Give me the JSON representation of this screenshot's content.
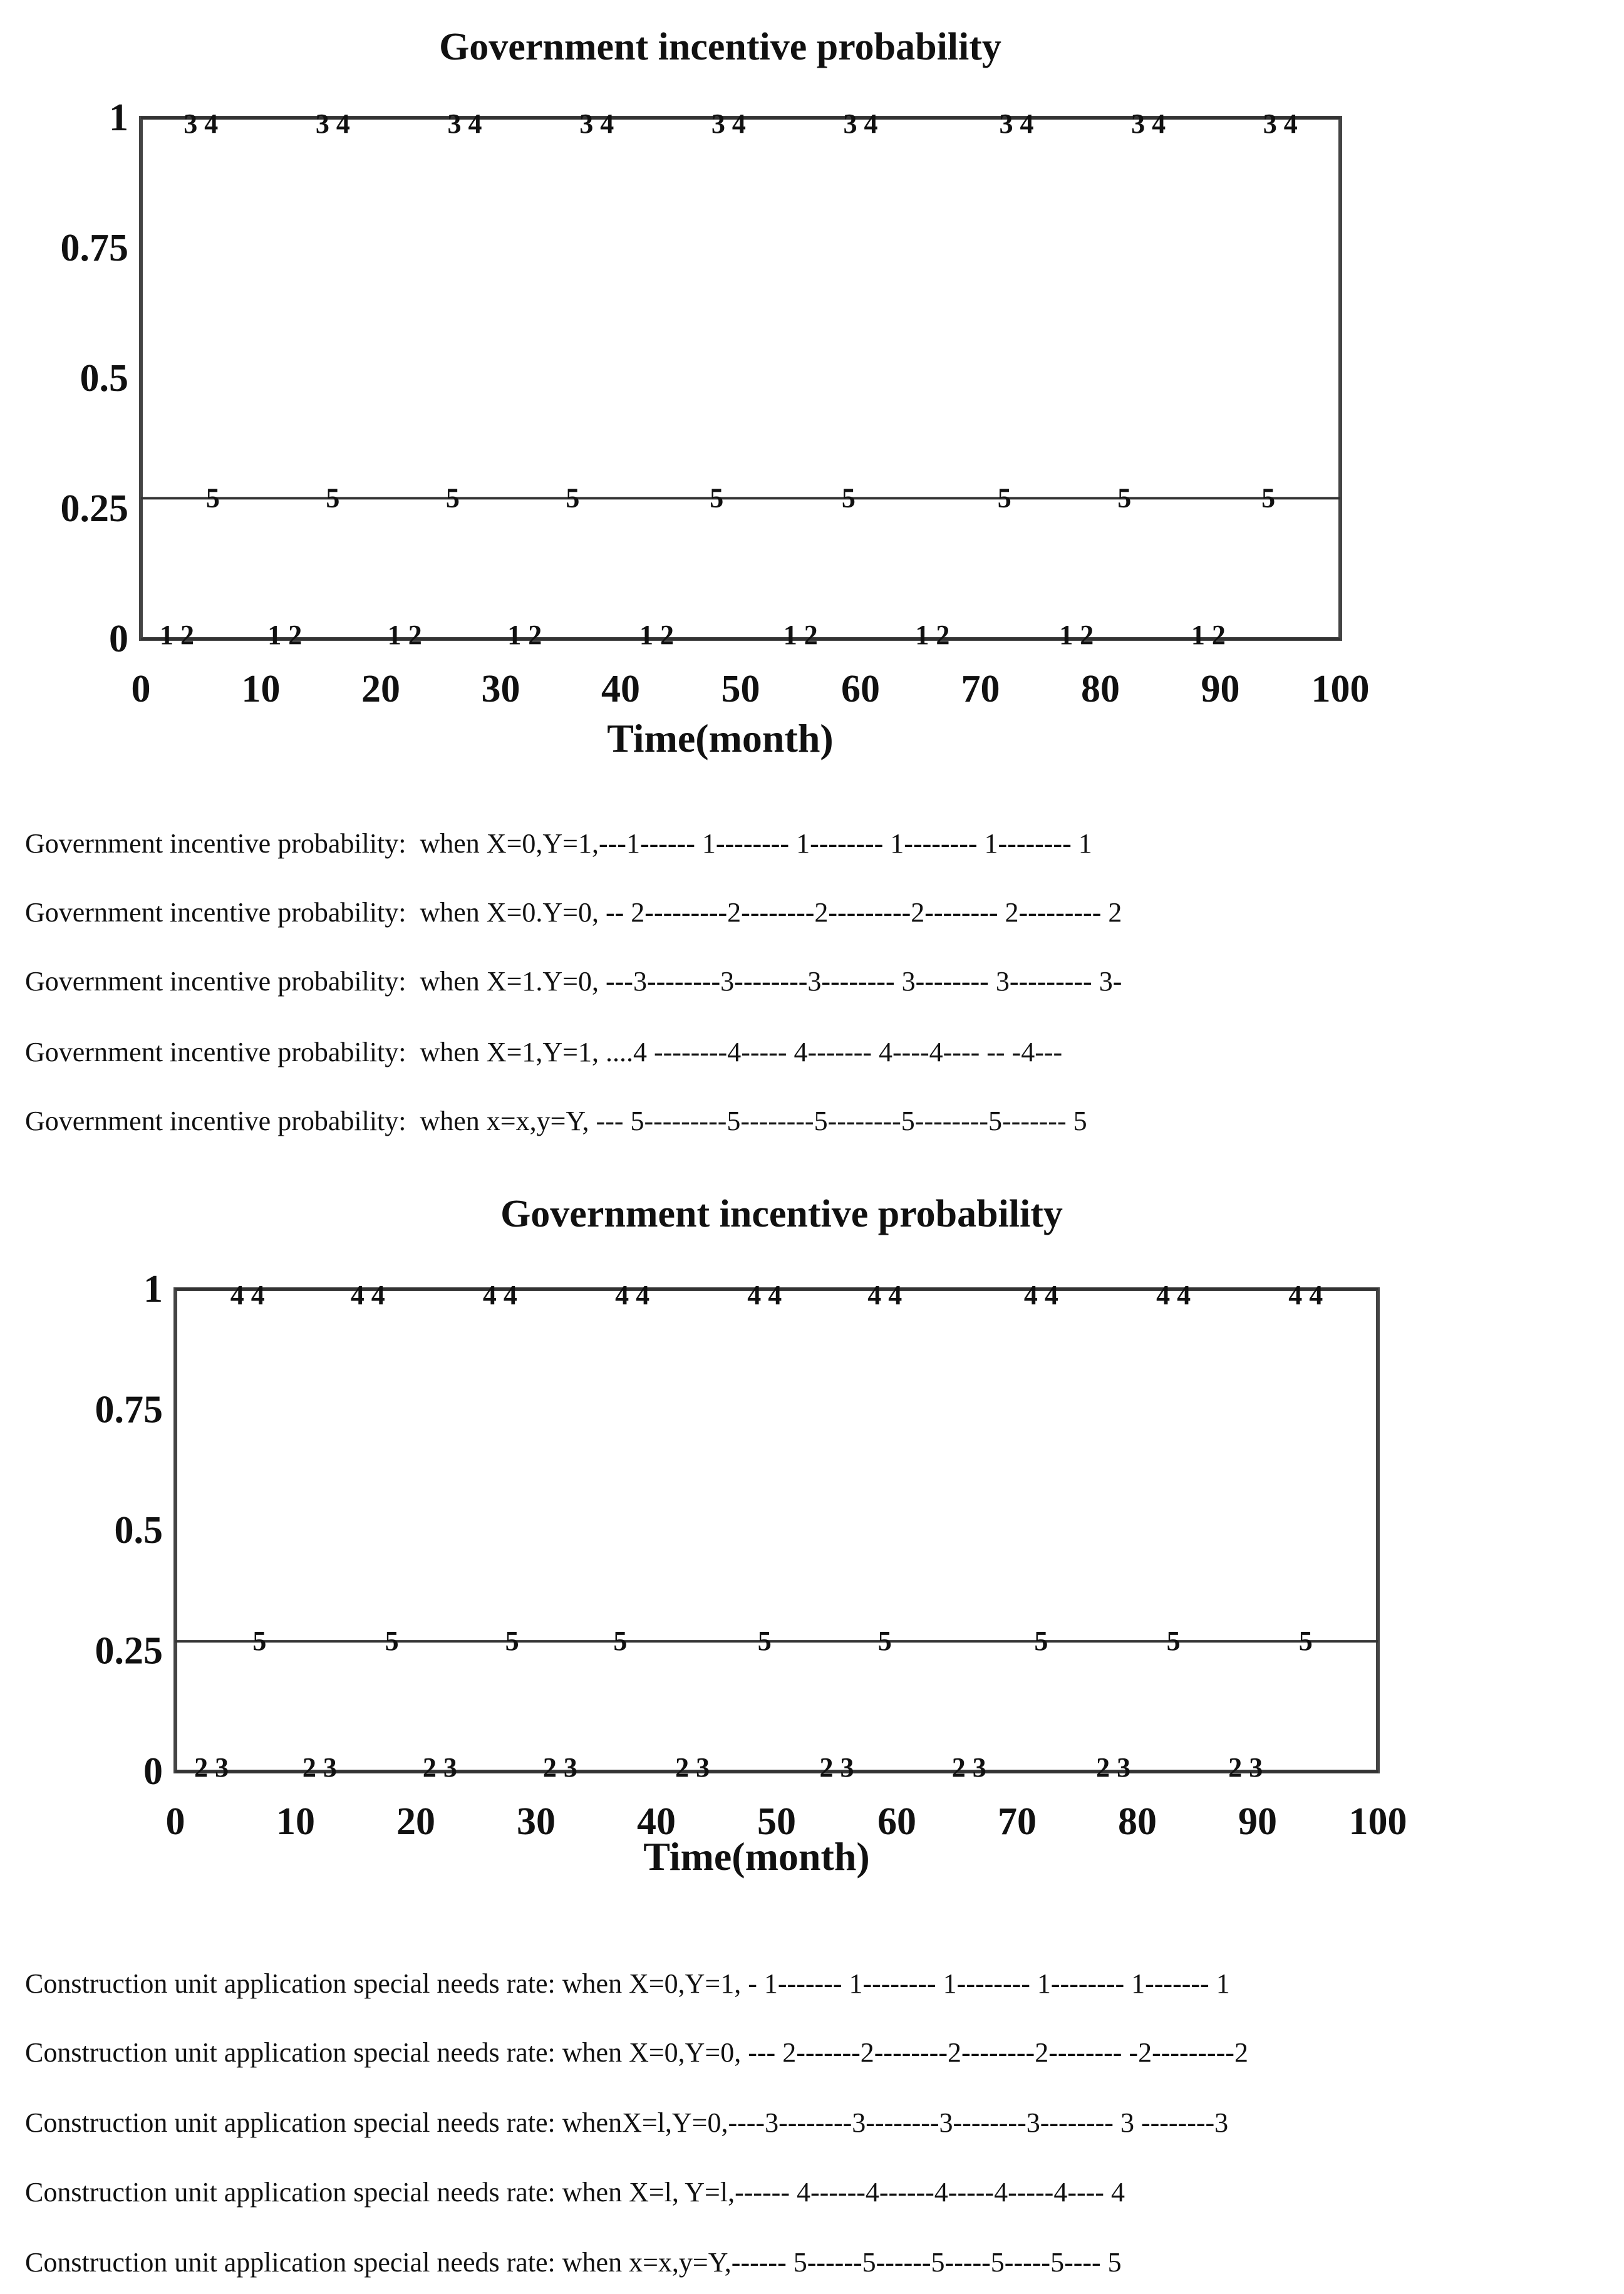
{
  "chart_data": [
    {
      "type": "line",
      "title": "Government incentive probability",
      "xlabel": "Time(month)",
      "ylabel": "",
      "xlim": [
        0,
        100
      ],
      "ylim": [
        0,
        1
      ],
      "x_ticks": [
        "0",
        "10",
        "20",
        "30",
        "40",
        "50",
        "60",
        "70",
        "80",
        "90",
        "100"
      ],
      "y_ticks": [
        "0",
        "0.25",
        "0.5",
        "0.75",
        "1"
      ],
      "grid": false,
      "series": [
        {
          "label": "1",
          "y": 0
        },
        {
          "label": "2",
          "y": 0
        },
        {
          "label": "3",
          "y": 1
        },
        {
          "label": "4",
          "y": 1
        },
        {
          "label": "5",
          "y": 0.27
        }
      ],
      "lines": [
        {
          "y": 1,
          "label": "3 4",
          "x_positions": [
            5,
            16,
            27,
            38,
            49,
            60,
            73,
            84,
            95
          ]
        },
        {
          "y": 0.27,
          "label": "5",
          "x_positions": [
            6,
            16,
            26,
            36,
            48,
            59,
            72,
            82,
            94
          ]
        },
        {
          "y": 0,
          "label": "1 2",
          "x_positions": [
            3,
            12,
            22,
            32,
            43,
            55,
            66,
            78,
            89
          ]
        }
      ],
      "legend": [
        "Government incentive probability:  when X=0,Y=1,---1------ 1-------- 1-------- 1-------- 1-------- 1",
        "Government incentive probability:  when X=0.Y=0, -- 2---------2--------2---------2-------- 2--------- 2",
        "Government incentive probability:  when X=1.Y=0, ---3--------3--------3-------- 3-------- 3--------- 3-",
        "Government incentive probability:  when X=1,Y=1, ....4 --------4----- 4------- 4----4---- -- -4---",
        "Government incentive probability:  when x=x,y=Y, --- 5---------5--------5--------5--------5------- 5"
      ]
    },
    {
      "type": "line",
      "title": "Government incentive probability",
      "xlabel": "Time(month)",
      "ylabel": "",
      "xlim": [
        0,
        100
      ],
      "ylim": [
        0,
        1
      ],
      "x_ticks": [
        "0",
        "10",
        "20",
        "30",
        "40",
        "50",
        "60",
        "70",
        "80",
        "90",
        "100"
      ],
      "y_ticks": [
        "0",
        "0.25",
        "0.5",
        "0.75",
        "1"
      ],
      "grid": false,
      "series": [
        {
          "label": "1",
          "y": 1
        },
        {
          "label": "2",
          "y": 0
        },
        {
          "label": "3",
          "y": 0
        },
        {
          "label": "4",
          "y": 1
        },
        {
          "label": "5",
          "y": 0.27
        }
      ],
      "lines": [
        {
          "y": 1,
          "label": "4 4",
          "x_positions": [
            6,
            16,
            27,
            38,
            49,
            59,
            72,
            83,
            94
          ]
        },
        {
          "y": 0.27,
          "label": "5",
          "x_positions": [
            7,
            18,
            28,
            37,
            49,
            59,
            72,
            83,
            94
          ]
        },
        {
          "y": 0,
          "label": "2 3",
          "x_positions": [
            3,
            12,
            22,
            32,
            43,
            55,
            66,
            78,
            89
          ]
        }
      ],
      "legend": [
        "Construction unit application special needs rate: when X=0,Y=1, - 1------- 1-------- 1-------- 1-------- 1------- 1",
        "Construction unit application special needs rate: when X=0,Y=0, --- 2-------2--------2--------2-------- -2---------2",
        "Construction unit application special needs rate: whenX=l,Y=0,----3--------3--------3--------3-------- 3 --------3",
        "Construction unit application special needs rate: when X=l, Y=l,------ 4------4------4-----4-----4---- 4",
        "Construction unit application special needs rate: when x=x,y=Y,------ 5------5------5-----5-----5---- 5"
      ]
    }
  ]
}
